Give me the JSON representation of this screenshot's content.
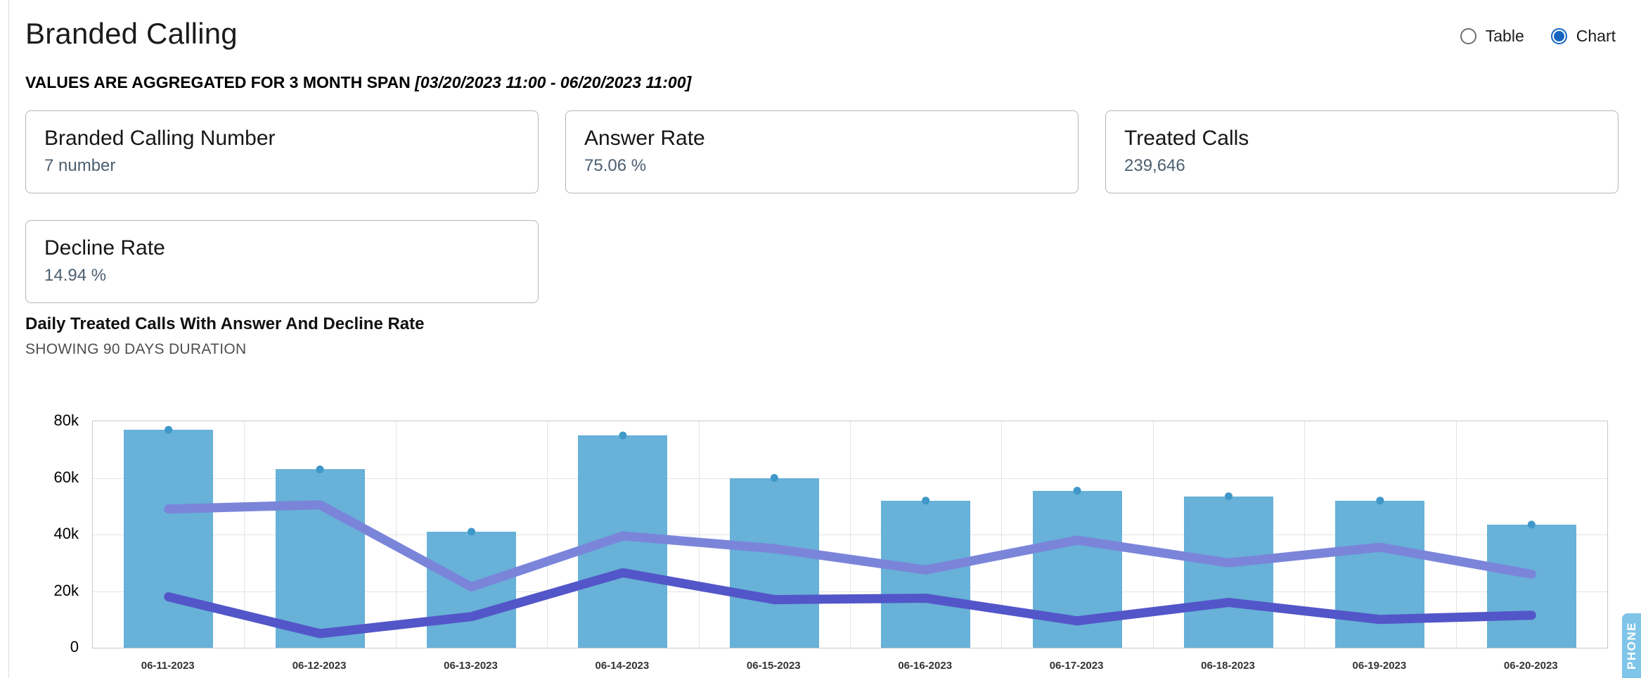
{
  "page": {
    "title": "Branded Calling",
    "aggregation_note": "VALUES ARE AGGREGATED FOR 3 MONTH SPAN",
    "aggregation_range": "[03/20/2023 11:00 - 06/20/2023 11:00]"
  },
  "view_toggle": {
    "accent_color": "#1565c0",
    "options": [
      {
        "label": "Table",
        "selected": false
      },
      {
        "label": "Chart",
        "selected": true
      }
    ]
  },
  "stat_cards": [
    {
      "title": "Branded Calling Number",
      "value": "7 number"
    },
    {
      "title": "Answer Rate",
      "value": "75.06 %"
    },
    {
      "title": "Treated Calls",
      "value": "239,646"
    },
    {
      "title": "Decline Rate",
      "value": "14.94 %"
    }
  ],
  "chart_section": {
    "title": "Daily Treated Calls With Answer And Decline Rate",
    "subtitle": "SHOWING 90 DAYS DURATION"
  },
  "side_tab": {
    "label": "PHONE",
    "color": "#7fc5e9"
  },
  "chart_data": {
    "type": "bar",
    "title": "Daily Treated Calls With Answer And Decline Rate",
    "categories": [
      "06-11-2023",
      "06-12-2023",
      "06-13-2023",
      "06-14-2023",
      "06-15-2023",
      "06-16-2023",
      "06-17-2023",
      "06-18-2023",
      "06-19-2023",
      "06-20-2023"
    ],
    "series": [
      {
        "name": "Treated Calls",
        "type": "bar",
        "color": "#68b1d8",
        "values": [
          77000,
          63000,
          41000,
          75000,
          60000,
          52000,
          55500,
          53500,
          52000,
          43500
        ]
      },
      {
        "name": "Answer",
        "type": "line",
        "color": "#7a85da",
        "values": [
          49000,
          50500,
          21500,
          39500,
          35000,
          27500,
          38000,
          30000,
          35500,
          26000
        ]
      },
      {
        "name": "Decline",
        "type": "line",
        "color": "#5356c8",
        "values": [
          18000,
          5000,
          11000,
          26500,
          17000,
          17500,
          9500,
          16000,
          10000,
          11500
        ]
      }
    ],
    "xlabel": "",
    "ylabel": "",
    "ylim": [
      0,
      80000
    ],
    "yticks": [
      "80k",
      "60k",
      "40k",
      "20k",
      "0"
    ],
    "grid": true,
    "legend": "none",
    "marker_color": "#3f98c9"
  }
}
